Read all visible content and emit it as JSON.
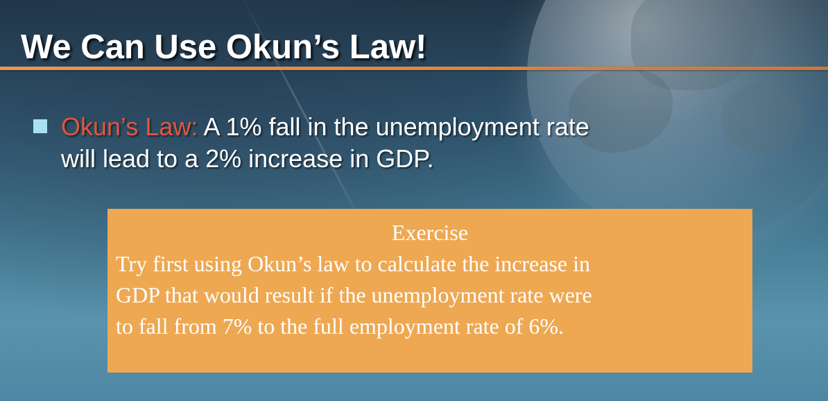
{
  "slide": {
    "title": "We Can Use Okun’s Law!",
    "bullet": {
      "term": "Okun’s Law:",
      "line1_rest": " A  1% fall in the unemployment rate",
      "line2": "will lead to a 2% increase in GDP."
    },
    "exercise": {
      "heading": "Exercise",
      "lines": [
        "Try first using Okun’s law to calculate the increase in",
        "GDP that would result if the unemployment rate were",
        "to fall from 7% to the full employment rate of 6%."
      ]
    },
    "colors": {
      "accent_rule": "#e89a52",
      "term": "#e0573f",
      "box": "#eea852",
      "bullet": "#a9e2ee"
    }
  }
}
